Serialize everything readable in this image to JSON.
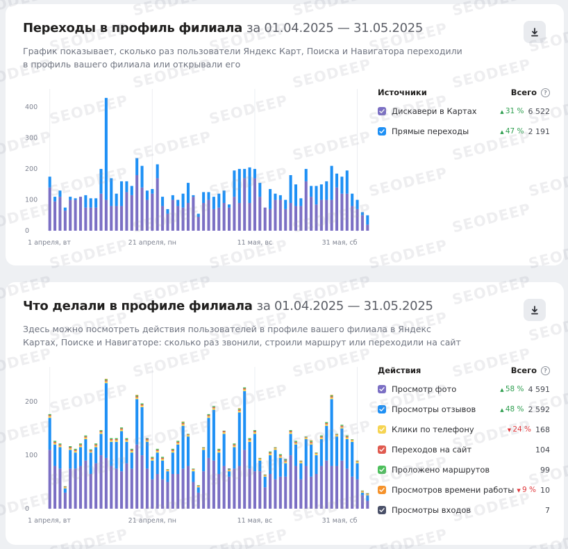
{
  "card1": {
    "title": "Переходы в профиль филиала",
    "period": "за 01.04.2025 — 31.05.2025",
    "description": "График показывает, сколько раз пользователи Яндекс Карт, Поиска и Навигатора переходили в профиль вашего филиала или открывали его",
    "legend_title": "Источники",
    "legend_total": "Всего",
    "legend": [
      {
        "name": "Дискавери в Картах",
        "delta": "31 %",
        "trend": "up",
        "value": "6 522",
        "color": "#7b6fc4"
      },
      {
        "name": "Прямые переходы",
        "delta": "47 %",
        "trend": "up",
        "value": "2 191",
        "color": "#1e90f5"
      }
    ]
  },
  "card2": {
    "title": "Что делали в профиле филиала",
    "period": "за 01.04.2025 — 31.05.2025",
    "description": "Здесь можно посмотреть действия пользователей в профиле вашего филиала в Яндекс Картах, Поиске и Навигаторе: сколько раз звонили, строили маршрут или переходили на сайт",
    "legend_title": "Действия",
    "legend_total": "Всего",
    "legend": [
      {
        "name": "Просмотр фото",
        "delta": "58 %",
        "trend": "up",
        "value": "4 591",
        "color": "#7b6fc4"
      },
      {
        "name": "Просмотры отзывов",
        "delta": "48 %",
        "trend": "up",
        "value": "2 592",
        "color": "#1e90f5"
      },
      {
        "name": "Клики по телефону",
        "delta": "24 %",
        "trend": "down",
        "value": "168",
        "color": "#f6d452"
      },
      {
        "name": "Переходов на сайт",
        "delta": "",
        "trend": "",
        "value": "104",
        "color": "#e05a4f"
      },
      {
        "name": "Проложено маршрутов",
        "delta": "",
        "trend": "",
        "value": "99",
        "color": "#4dbf5c"
      },
      {
        "name": "Просмотров времени работы",
        "delta": "9 %",
        "trend": "down",
        "value": "10",
        "color": "#f5922b"
      },
      {
        "name": "Просмотры входов",
        "delta": "",
        "trend": "",
        "value": "7",
        "color": "#4a5068"
      }
    ]
  },
  "icons": {
    "download": "download-icon",
    "help": "question-icon",
    "check": "check-icon",
    "arrow_up": "triangle-up-icon",
    "arrow_down": "triangle-down-icon"
  },
  "watermark_text": "SEODEEP",
  "chart_data": [
    {
      "type": "bar",
      "stacked": true,
      "title": "Переходы в профиль филиала",
      "ylim": [
        0,
        450
      ],
      "yticks": [
        0,
        100,
        200,
        300,
        400
      ],
      "xtick_labels": [
        {
          "index": 0,
          "label": "1 апреля, вт"
        },
        {
          "index": 20,
          "label": "21 апреля, пн"
        },
        {
          "index": 40,
          "label": "11 мая, вс"
        },
        {
          "index": 60,
          "label": "31 мая, сб"
        }
      ],
      "series": [
        {
          "name": "Дискавери в Картах",
          "color": "#7b6fc4",
          "values": [
            140,
            95,
            110,
            65,
            100,
            100,
            110,
            75,
            75,
            75,
            120,
            100,
            80,
            80,
            80,
            125,
            115,
            180,
            140,
            100,
            120,
            170,
            80,
            55,
            100,
            80,
            75,
            90,
            110,
            45,
            90,
            100,
            70,
            75,
            90,
            75,
            110,
            90,
            170,
            90,
            170,
            110,
            75,
            70,
            100,
            100,
            70,
            90,
            80,
            80,
            160,
            110,
            85,
            100,
            100,
            100,
            140,
            120,
            120,
            80,
            70,
            50,
            20
          ]
        },
        {
          "name": "Прямые переходы",
          "color": "#1e90f5",
          "values": [
            35,
            15,
            20,
            10,
            10,
            5,
            0,
            40,
            30,
            30,
            80,
            330,
            90,
            40,
            80,
            35,
            30,
            55,
            70,
            30,
            15,
            45,
            30,
            15,
            15,
            20,
            45,
            65,
            5,
            10,
            35,
            25,
            40,
            45,
            40,
            10,
            85,
            110,
            30,
            115,
            30,
            45,
            0,
            65,
            20,
            15,
            30,
            90,
            70,
            25,
            40,
            35,
            60,
            50,
            60,
            110,
            45,
            55,
            75,
            40,
            30,
            10,
            30
          ]
        }
      ]
    },
    {
      "type": "bar",
      "stacked": true,
      "title": "Что делали в профиле филиала",
      "ylim": [
        0,
        260
      ],
      "yticks": [
        0,
        100,
        200
      ],
      "xtick_labels": [
        {
          "index": 0,
          "label": "1 апреля, вт"
        },
        {
          "index": 20,
          "label": "21 апреля, пн"
        },
        {
          "index": 40,
          "label": "11 мая, вс"
        },
        {
          "index": 60,
          "label": "31 мая, сб"
        }
      ],
      "series": [
        {
          "name": "Просмотр фото",
          "color": "#7b6fc4",
          "values": [
            110,
            80,
            75,
            30,
            75,
            75,
            80,
            90,
            65,
            85,
            100,
            95,
            80,
            75,
            70,
            85,
            75,
            120,
            100,
            75,
            55,
            65,
            55,
            50,
            65,
            65,
            75,
            80,
            50,
            30,
            70,
            95,
            90,
            65,
            80,
            60,
            75,
            80,
            110,
            75,
            70,
            70,
            40,
            65,
            55,
            60,
            60,
            100,
            80,
            55,
            80,
            60,
            65,
            80,
            90,
            80,
            80,
            90,
            75,
            60,
            55,
            25,
            15
          ]
        },
        {
          "name": "Просмотры отзывов",
          "color": "#1e90f5",
          "values": [
            60,
            40,
            40,
            8,
            35,
            30,
            35,
            40,
            40,
            30,
            40,
            140,
            45,
            50,
            75,
            40,
            30,
            85,
            90,
            50,
            35,
            40,
            35,
            20,
            40,
            55,
            80,
            55,
            20,
            10,
            40,
            75,
            95,
            40,
            60,
            10,
            40,
            100,
            110,
            50,
            70,
            20,
            20,
            35,
            55,
            35,
            25,
            40,
            40,
            30,
            50,
            60,
            35,
            50,
            65,
            125,
            55,
            60,
            55,
            65,
            30,
            5,
            10
          ]
        },
        {
          "name": "Клики по телефону",
          "color": "#f6d452",
          "values": [
            3,
            3,
            3,
            2,
            3,
            3,
            3,
            3,
            2,
            3,
            3,
            3,
            3,
            3,
            3,
            3,
            3,
            3,
            3,
            3,
            3,
            3,
            3,
            2,
            3,
            3,
            3,
            3,
            3,
            2,
            3,
            3,
            3,
            3,
            3,
            2,
            3,
            3,
            3,
            3,
            3,
            3,
            2,
            3,
            3,
            3,
            3,
            3,
            3,
            3,
            3,
            3,
            3,
            3,
            3,
            3,
            3,
            3,
            3,
            3,
            3,
            2,
            2
          ]
        },
        {
          "name": "Переходов на сайт",
          "color": "#e05a4f",
          "values": [
            2,
            2,
            2,
            1,
            2,
            2,
            2,
            2,
            2,
            2,
            2,
            2,
            2,
            2,
            2,
            2,
            2,
            2,
            2,
            2,
            2,
            2,
            2,
            1,
            2,
            2,
            2,
            1,
            1,
            1,
            1,
            2,
            2,
            2,
            2,
            1,
            2,
            2,
            2,
            2,
            2,
            1,
            1,
            2,
            1,
            2,
            2,
            2,
            2,
            1,
            1,
            2,
            1,
            2,
            2,
            2,
            1,
            2,
            2,
            1,
            1,
            1,
            1
          ]
        },
        {
          "name": "Проложено маршрутов",
          "color": "#4dbf5c",
          "values": [
            2,
            2,
            2,
            1,
            2,
            2,
            2,
            2,
            2,
            2,
            2,
            2,
            2,
            2,
            2,
            2,
            2,
            2,
            2,
            1,
            2,
            2,
            2,
            1,
            2,
            2,
            2,
            1,
            1,
            1,
            1,
            2,
            2,
            2,
            1,
            1,
            2,
            2,
            2,
            2,
            2,
            1,
            1,
            2,
            1,
            2,
            2,
            2,
            2,
            1,
            1,
            2,
            1,
            2,
            2,
            2,
            1,
            2,
            2,
            1,
            1,
            1,
            1
          ]
        },
        {
          "name": "Просмотров времени работы",
          "color": "#f5922b",
          "values": [
            0,
            0,
            0,
            0,
            0,
            0,
            0,
            0,
            0,
            0,
            0,
            1,
            0,
            0,
            0,
            0,
            0,
            1,
            0,
            0,
            0,
            0,
            0,
            0,
            0,
            0,
            1,
            0,
            0,
            0,
            0,
            0,
            0,
            0,
            0,
            0,
            0,
            1,
            0,
            0,
            0,
            0,
            0,
            0,
            0,
            0,
            0,
            0,
            0,
            0,
            0,
            1,
            0,
            0,
            0,
            1,
            0,
            0,
            0,
            0,
            0,
            0,
            0
          ]
        },
        {
          "name": "Просмотры входов",
          "color": "#4a5068",
          "values": [
            0,
            0,
            0,
            0,
            0,
            0,
            0,
            0,
            0,
            0,
            0,
            0,
            0,
            0,
            0,
            0,
            0,
            0,
            0,
            1,
            0,
            0,
            0,
            0,
            0,
            0,
            0,
            0,
            0,
            0,
            0,
            0,
            0,
            0,
            0,
            1,
            0,
            0,
            0,
            0,
            0,
            0,
            0,
            0,
            0,
            0,
            1,
            0,
            0,
            0,
            0,
            0,
            0,
            0,
            0,
            0,
            0,
            0,
            0,
            0,
            0,
            0,
            0
          ]
        }
      ]
    }
  ]
}
